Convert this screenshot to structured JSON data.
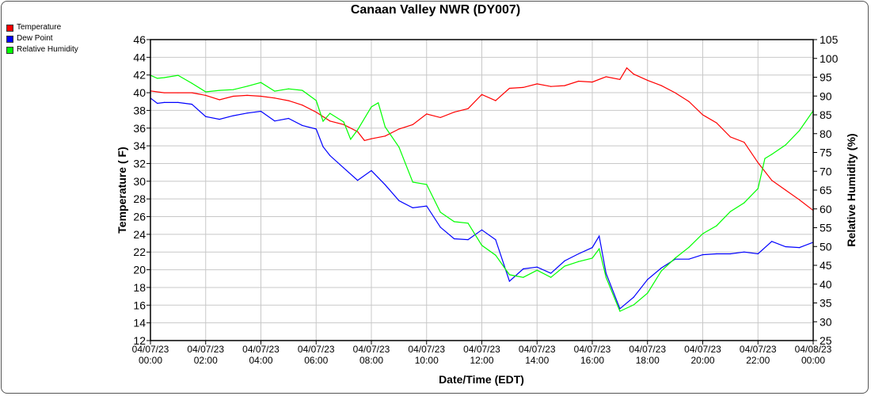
{
  "chart_data": {
    "type": "line",
    "title": "Canaan Valley NWR (DY007)",
    "xlabel": "Date/Time (EDT)",
    "ylabel": "Temperature ( F)",
    "y2label": "Relative Humidity (%)",
    "ylim": [
      12,
      46
    ],
    "y2lim": [
      25,
      105
    ],
    "xlim_hours": [
      0,
      24
    ],
    "grid": true,
    "legend_placement": "top-left",
    "yticks": [
      "12",
      "14",
      "16",
      "18",
      "20",
      "22",
      "24",
      "26",
      "28",
      "30",
      "32",
      "34",
      "36",
      "38",
      "40",
      "42",
      "44",
      "46"
    ],
    "y2ticks": [
      "25",
      "30",
      "35",
      "40",
      "45",
      "50",
      "55",
      "60",
      "65",
      "70",
      "75",
      "80",
      "85",
      "90",
      "95",
      "100",
      "105"
    ],
    "xticks": [
      {
        "date": "04/07/23",
        "time": "00:00"
      },
      {
        "date": "04/07/23",
        "time": "02:00"
      },
      {
        "date": "04/07/23",
        "time": "04:00"
      },
      {
        "date": "04/07/23",
        "time": "06:00"
      },
      {
        "date": "04/07/23",
        "time": "08:00"
      },
      {
        "date": "04/07/23",
        "time": "10:00"
      },
      {
        "date": "04/07/23",
        "time": "12:00"
      },
      {
        "date": "04/07/23",
        "time": "14:00"
      },
      {
        "date": "04/07/23",
        "time": "16:00"
      },
      {
        "date": "04/07/23",
        "time": "18:00"
      },
      {
        "date": "04/07/23",
        "time": "20:00"
      },
      {
        "date": "04/07/23",
        "time": "22:00"
      },
      {
        "date": "04/08/23",
        "time": "00:00"
      }
    ],
    "series": [
      {
        "name": "Temperature",
        "color": "#ff0000",
        "axis": "left",
        "points": [
          [
            0,
            40.2
          ],
          [
            0.5,
            40.0
          ],
          [
            1,
            40
          ],
          [
            1.5,
            40
          ],
          [
            2,
            39.7
          ],
          [
            2.5,
            39.2
          ],
          [
            3,
            39.6
          ],
          [
            3.5,
            39.7
          ],
          [
            4,
            39.6
          ],
          [
            4.5,
            39.4
          ],
          [
            5,
            39.1
          ],
          [
            5.5,
            38.6
          ],
          [
            6,
            37.8
          ],
          [
            6.5,
            36.8
          ],
          [
            7,
            36.4
          ],
          [
            7.5,
            35.6
          ],
          [
            7.75,
            34.6
          ],
          [
            8,
            34.8
          ],
          [
            8.5,
            35.1
          ],
          [
            9,
            35.9
          ],
          [
            9.5,
            36.4
          ],
          [
            10,
            37.6
          ],
          [
            10.5,
            37.2
          ],
          [
            11,
            37.8
          ],
          [
            11.5,
            38.2
          ],
          [
            12,
            39.8
          ],
          [
            12.5,
            39.1
          ],
          [
            13,
            40.5
          ],
          [
            13.5,
            40.6
          ],
          [
            14,
            41.0
          ],
          [
            14.5,
            40.7
          ],
          [
            15,
            40.8
          ],
          [
            15.5,
            41.3
          ],
          [
            16,
            41.2
          ],
          [
            16.5,
            41.8
          ],
          [
            17,
            41.5
          ],
          [
            17.25,
            42.8
          ],
          [
            17.5,
            42.1
          ],
          [
            18,
            41.4
          ],
          [
            18.5,
            40.8
          ],
          [
            19,
            40
          ],
          [
            19.5,
            39
          ],
          [
            20,
            37.5
          ],
          [
            20.5,
            36.6
          ],
          [
            21,
            35
          ],
          [
            21.5,
            34.4
          ],
          [
            22,
            32.1
          ],
          [
            22.5,
            30.1
          ],
          [
            23,
            29
          ],
          [
            23.5,
            27.9
          ],
          [
            24,
            26.7
          ]
        ]
      },
      {
        "name": "Dew Point",
        "color": "#0000ff",
        "axis": "left",
        "points": [
          [
            0,
            39.4
          ],
          [
            0.25,
            38.8
          ],
          [
            0.5,
            38.9
          ],
          [
            1,
            38.9
          ],
          [
            1.5,
            38.7
          ],
          [
            2,
            37.3
          ],
          [
            2.5,
            37
          ],
          [
            3,
            37.4
          ],
          [
            3.5,
            37.7
          ],
          [
            4,
            37.9
          ],
          [
            4.5,
            36.8
          ],
          [
            5,
            37.1
          ],
          [
            5.5,
            36.3
          ],
          [
            6,
            35.9
          ],
          [
            6.25,
            33.9
          ],
          [
            6.5,
            32.9
          ],
          [
            7,
            31.5
          ],
          [
            7.5,
            30.1
          ],
          [
            8,
            31.2
          ],
          [
            8.5,
            29.6
          ],
          [
            9,
            27.8
          ],
          [
            9.5,
            27
          ],
          [
            10,
            27.2
          ],
          [
            10.5,
            24.8
          ],
          [
            11,
            23.5
          ],
          [
            11.5,
            23.4
          ],
          [
            12,
            24.5
          ],
          [
            12.5,
            23.4
          ],
          [
            13,
            18.7
          ],
          [
            13.5,
            20.1
          ],
          [
            14,
            20.3
          ],
          [
            14.5,
            19.6
          ],
          [
            15,
            21
          ],
          [
            15.5,
            21.8
          ],
          [
            16,
            22.5
          ],
          [
            16.25,
            23.8
          ],
          [
            16.5,
            19.6
          ],
          [
            17,
            15.6
          ],
          [
            17.5,
            16.9
          ],
          [
            18,
            18.9
          ],
          [
            18.5,
            20.2
          ],
          [
            19,
            21.2
          ],
          [
            19.5,
            21.2
          ],
          [
            20,
            21.7
          ],
          [
            20.5,
            21.8
          ],
          [
            21,
            21.8
          ],
          [
            21.5,
            22.0
          ],
          [
            22,
            21.8
          ],
          [
            22.5,
            23.2
          ],
          [
            23,
            22.6
          ],
          [
            23.5,
            22.5
          ],
          [
            24,
            23.1
          ]
        ]
      },
      {
        "name": "Relative Humidity",
        "color": "#00ff00",
        "axis": "right",
        "points": [
          [
            0,
            95.5
          ],
          [
            0.25,
            94.7
          ],
          [
            0.5,
            94.9
          ],
          [
            1,
            95.5
          ],
          [
            1.5,
            93.4
          ],
          [
            2,
            91.1
          ],
          [
            2.5,
            91.5
          ],
          [
            3,
            91.7
          ],
          [
            3.5,
            92.6
          ],
          [
            4,
            93.6
          ],
          [
            4.5,
            91.3
          ],
          [
            5,
            91.9
          ],
          [
            5.5,
            91.5
          ],
          [
            6,
            88.8
          ],
          [
            6.25,
            83.3
          ],
          [
            6.5,
            85.4
          ],
          [
            7,
            83.1
          ],
          [
            7.25,
            78.5
          ],
          [
            7.5,
            81
          ],
          [
            8,
            87.1
          ],
          [
            8.25,
            88.2
          ],
          [
            8.5,
            81.8
          ],
          [
            9,
            76.4
          ],
          [
            9.5,
            67.1
          ],
          [
            10,
            66.5
          ],
          [
            10.5,
            59.1
          ],
          [
            11,
            56.6
          ],
          [
            11.5,
            56.2
          ],
          [
            12,
            50.3
          ],
          [
            12.5,
            47.7
          ],
          [
            13,
            42.5
          ],
          [
            13.5,
            41.8
          ],
          [
            14,
            43.7
          ],
          [
            14.5,
            41.8
          ],
          [
            15,
            44.8
          ],
          [
            15.5,
            46
          ],
          [
            16,
            46.9
          ],
          [
            16.25,
            49.4
          ],
          [
            16.5,
            41.8
          ],
          [
            17,
            32.8
          ],
          [
            17.5,
            34.5
          ],
          [
            18,
            37.6
          ],
          [
            18.5,
            43.5
          ],
          [
            19,
            46.9
          ],
          [
            19.5,
            49.8
          ],
          [
            20,
            53.4
          ],
          [
            20.5,
            55.5
          ],
          [
            21,
            59.3
          ],
          [
            21.5,
            61.6
          ],
          [
            22,
            65.4
          ],
          [
            22.25,
            73.4
          ],
          [
            22.5,
            74.5
          ],
          [
            23,
            77
          ],
          [
            23.5,
            80.8
          ],
          [
            24,
            86.1
          ]
        ]
      }
    ]
  }
}
